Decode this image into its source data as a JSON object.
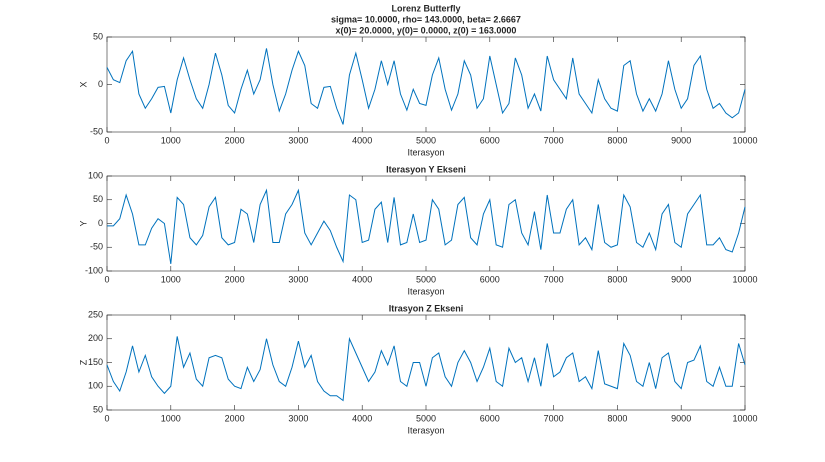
{
  "chart_data": [
    {
      "type": "line",
      "title": "Lorenz Butterfly",
      "subtitle": [
        "sigma= 10.0000, rho= 143.0000, beta= 2.6667",
        "x(0)= 20.0000, y(0)= 0.0000, z(0) = 163.0000"
      ],
      "xlabel": "Iterasyon",
      "ylabel": "X",
      "xlim": [
        0,
        10000
      ],
      "ylim": [
        -50,
        50
      ],
      "xticks": [
        0,
        1000,
        2000,
        3000,
        4000,
        5000,
        6000,
        7000,
        8000,
        9000,
        10000
      ],
      "yticks": [
        -50,
        0,
        50
      ],
      "x": [
        0,
        100,
        200,
        300,
        400,
        500,
        600,
        700,
        800,
        900,
        1000,
        1100,
        1200,
        1300,
        1400,
        1500,
        1600,
        1700,
        1800,
        1900,
        2000,
        2100,
        2200,
        2300,
        2400,
        2500,
        2600,
        2700,
        2800,
        2900,
        3000,
        3100,
        3200,
        3300,
        3400,
        3500,
        3600,
        3700,
        3800,
        3900,
        4000,
        4100,
        4200,
        4300,
        4400,
        4500,
        4600,
        4700,
        4800,
        4900,
        5000,
        5100,
        5200,
        5300,
        5400,
        5500,
        5600,
        5700,
        5800,
        5900,
        6000,
        6100,
        6200,
        6300,
        6400,
        6500,
        6600,
        6700,
        6800,
        6900,
        7000,
        7100,
        7200,
        7300,
        7400,
        7500,
        7600,
        7700,
        7800,
        7900,
        8000,
        8100,
        8200,
        8300,
        8400,
        8500,
        8600,
        8700,
        8800,
        8900,
        9000,
        9100,
        9200,
        9300,
        9400,
        9500,
        9600,
        9700,
        9800,
        9900,
        10000
      ],
      "color": "#0072bd",
      "values": [
        18,
        5,
        2,
        25,
        35,
        -10,
        -25,
        -15,
        -3,
        -2,
        -30,
        5,
        28,
        5,
        -15,
        -25,
        0,
        33,
        10,
        -22,
        -30,
        -5,
        15,
        -10,
        5,
        38,
        0,
        -28,
        -10,
        15,
        35,
        20,
        -20,
        -25,
        -3,
        -2,
        -25,
        -42,
        10,
        33,
        5,
        -25,
        -5,
        25,
        0,
        25,
        -10,
        -27,
        -5,
        -20,
        -22,
        10,
        28,
        -5,
        -27,
        -10,
        25,
        10,
        -25,
        -15,
        30,
        0,
        -30,
        -20,
        28,
        10,
        -25,
        -10,
        -28,
        30,
        5,
        -5,
        -15,
        28,
        -10,
        -20,
        -30,
        5,
        -15,
        -25,
        -28,
        20,
        25,
        -10,
        -28,
        -15,
        -28,
        -10,
        25,
        -5,
        -25,
        -15,
        20,
        30,
        -5,
        -25,
        -20,
        -30,
        -35,
        -30,
        -5
      ]
    },
    {
      "type": "line",
      "title": "Iterasyon Y Ekseni",
      "xlabel": "Iterasyon",
      "ylabel": "Y",
      "xlim": [
        0,
        10000
      ],
      "ylim": [
        -100,
        100
      ],
      "xticks": [
        0,
        1000,
        2000,
        3000,
        4000,
        5000,
        6000,
        7000,
        8000,
        9000,
        10000
      ],
      "yticks": [
        -100,
        -50,
        0,
        50,
        100
      ],
      "x": [
        0,
        100,
        200,
        300,
        400,
        500,
        600,
        700,
        800,
        900,
        1000,
        1100,
        1200,
        1300,
        1400,
        1500,
        1600,
        1700,
        1800,
        1900,
        2000,
        2100,
        2200,
        2300,
        2400,
        2500,
        2600,
        2700,
        2800,
        2900,
        3000,
        3100,
        3200,
        3300,
        3400,
        3500,
        3600,
        3700,
        3800,
        3900,
        4000,
        4100,
        4200,
        4300,
        4400,
        4500,
        4600,
        4700,
        4800,
        4900,
        5000,
        5100,
        5200,
        5300,
        5400,
        5500,
        5600,
        5700,
        5800,
        5900,
        6000,
        6100,
        6200,
        6300,
        6400,
        6500,
        6600,
        6700,
        6800,
        6900,
        7000,
        7100,
        7200,
        7300,
        7400,
        7500,
        7600,
        7700,
        7800,
        7900,
        8000,
        8100,
        8200,
        8300,
        8400,
        8500,
        8600,
        8700,
        8800,
        8900,
        9000,
        9100,
        9200,
        9300,
        9400,
        9500,
        9600,
        9700,
        9800,
        9900,
        10000
      ],
      "color": "#0072bd",
      "values": [
        -5,
        -5,
        10,
        60,
        20,
        -45,
        -45,
        -10,
        10,
        0,
        -85,
        55,
        40,
        -30,
        -45,
        -25,
        35,
        55,
        -30,
        -45,
        -40,
        30,
        20,
        -40,
        40,
        70,
        -40,
        -40,
        20,
        40,
        70,
        -20,
        -45,
        -20,
        5,
        -15,
        -50,
        -80,
        60,
        50,
        -40,
        -35,
        30,
        45,
        -40,
        55,
        -45,
        -40,
        20,
        -40,
        -35,
        50,
        30,
        -45,
        -35,
        40,
        55,
        -30,
        -45,
        20,
        50,
        -45,
        -50,
        40,
        50,
        -20,
        -45,
        25,
        -55,
        60,
        -20,
        -20,
        30,
        50,
        -45,
        -30,
        -55,
        40,
        -40,
        -50,
        -45,
        60,
        35,
        -40,
        -50,
        -20,
        -55,
        20,
        40,
        -40,
        -50,
        20,
        40,
        60,
        -45,
        -45,
        -30,
        -55,
        -60,
        -20,
        35
      ]
    },
    {
      "type": "line",
      "title": "Itrasyon Z Ekseni",
      "xlabel": "Iterasyon",
      "ylabel": "Z",
      "xlim": [
        0,
        10000
      ],
      "ylim": [
        50,
        250
      ],
      "xticks": [
        0,
        1000,
        2000,
        3000,
        4000,
        5000,
        6000,
        7000,
        8000,
        9000,
        10000
      ],
      "yticks": [
        50,
        100,
        150,
        200,
        250
      ],
      "x": [
        0,
        100,
        200,
        300,
        400,
        500,
        600,
        700,
        800,
        900,
        1000,
        1100,
        1200,
        1300,
        1400,
        1500,
        1600,
        1700,
        1800,
        1900,
        2000,
        2100,
        2200,
        2300,
        2400,
        2500,
        2600,
        2700,
        2800,
        2900,
        3000,
        3100,
        3200,
        3300,
        3400,
        3500,
        3600,
        3700,
        3800,
        3900,
        4000,
        4100,
        4200,
        4300,
        4400,
        4500,
        4600,
        4700,
        4800,
        4900,
        5000,
        5100,
        5200,
        5300,
        5400,
        5500,
        5600,
        5700,
        5800,
        5900,
        6000,
        6100,
        6200,
        6300,
        6400,
        6500,
        6600,
        6700,
        6800,
        6900,
        7000,
        7100,
        7200,
        7300,
        7400,
        7500,
        7600,
        7700,
        7800,
        7900,
        8000,
        8100,
        8200,
        8300,
        8400,
        8500,
        8600,
        8700,
        8800,
        8900,
        9000,
        9100,
        9200,
        9300,
        9400,
        9500,
        9600,
        9700,
        9800,
        9900,
        10000
      ],
      "color": "#0072bd",
      "values": [
        145,
        110,
        90,
        130,
        185,
        130,
        165,
        120,
        100,
        85,
        100,
        205,
        140,
        170,
        115,
        100,
        160,
        165,
        160,
        115,
        100,
        95,
        140,
        110,
        135,
        200,
        145,
        110,
        100,
        140,
        195,
        140,
        165,
        110,
        90,
        80,
        80,
        70,
        200,
        170,
        140,
        110,
        130,
        175,
        145,
        185,
        110,
        100,
        150,
        150,
        100,
        160,
        170,
        120,
        100,
        150,
        175,
        150,
        110,
        140,
        180,
        110,
        100,
        180,
        150,
        160,
        110,
        160,
        100,
        190,
        120,
        130,
        160,
        170,
        110,
        120,
        95,
        175,
        105,
        100,
        95,
        190,
        165,
        110,
        100,
        150,
        95,
        160,
        170,
        110,
        95,
        150,
        155,
        185,
        110,
        100,
        140,
        100,
        100,
        190,
        145
      ]
    }
  ]
}
